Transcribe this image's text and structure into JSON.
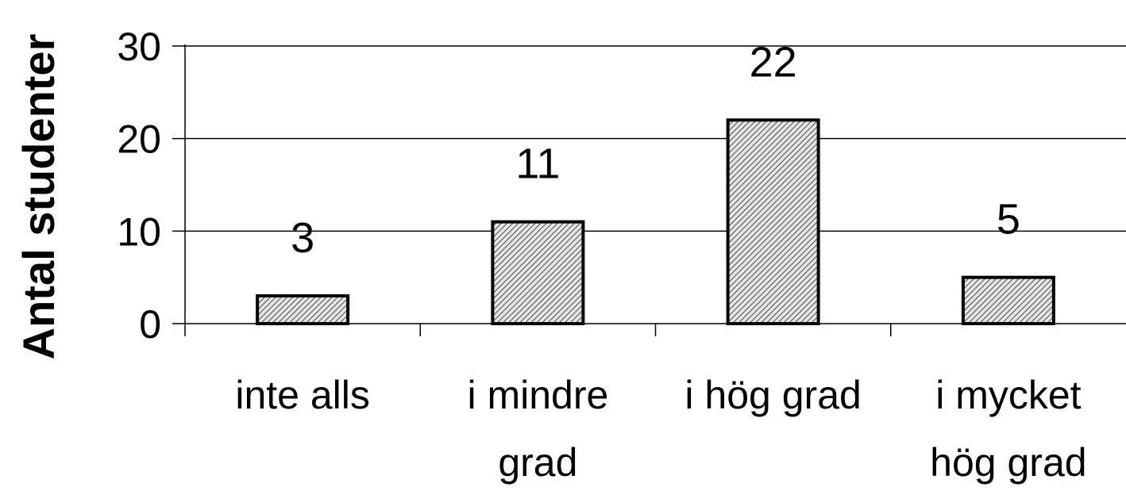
{
  "chart_data": {
    "type": "bar",
    "ylabel": "Antal studenter",
    "xlabel": "",
    "categories": [
      [
        "inte alls"
      ],
      [
        "i mindre",
        "grad"
      ],
      [
        "i hög grad"
      ],
      [
        "i mycket",
        "hög grad"
      ]
    ],
    "values": [
      3,
      11,
      22,
      5
    ],
    "data_labels": [
      "3",
      "11",
      "22",
      "5"
    ],
    "ylim": [
      0,
      30
    ],
    "yticks": [
      0,
      10,
      20,
      30
    ],
    "grid": true,
    "bar_fill": "hatched",
    "colors": {
      "bar_hatch": "#555555",
      "bar_bg": "#e6e6e6",
      "outline": "#000000"
    }
  }
}
